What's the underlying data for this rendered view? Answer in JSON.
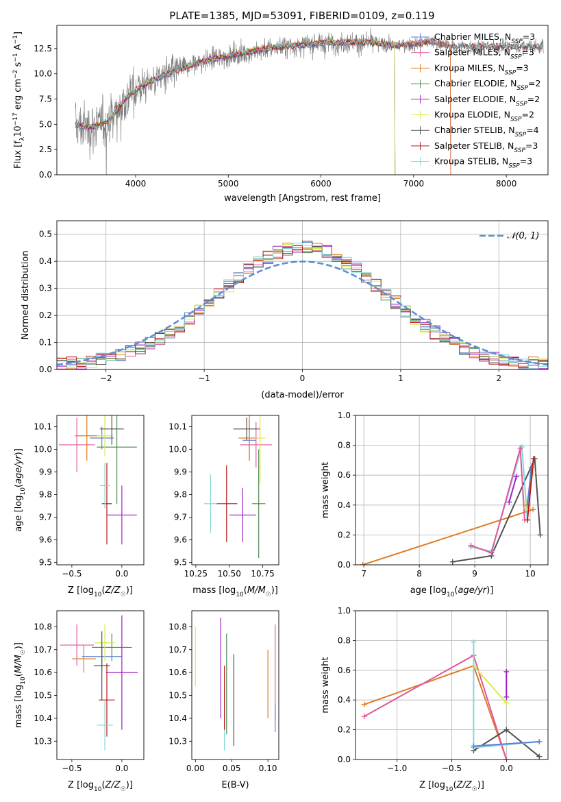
{
  "figure_title": "PLATE=1385, MJD=53091, FIBERID=0109, z=0.119",
  "colors": {
    "Chabrier MILES": "#5b7fd6",
    "Salpeter MILES": "#e0569e",
    "Kroupa MILES": "#e07b22",
    "Chabrier ELODIE": "#4f8a52",
    "Salpeter ELODIE": "#a020c8",
    "Kroupa ELODIE": "#d8ea4a",
    "Chabrier STELIB": "#505050",
    "Salpeter STELIB": "#b81818",
    "Kroupa STELIB": "#7fd8d8",
    "data": "#808080",
    "normal": "#5b8fd6"
  },
  "chart_data": [
    {
      "id": "spectrum",
      "type": "line",
      "title": "PLATE=1385, MJD=53091, FIBERID=0109, z=0.119",
      "xlabel": "wavelength [Angstrom, rest frame]",
      "ylabel": "Flux [fλ10⁻¹⁷ erg cm⁻² s⁻¹ A⁻¹]",
      "xlim": [
        3150,
        8450
      ],
      "ylim": [
        0,
        14.8
      ],
      "xticks": [
        4000,
        5000,
        6000,
        7000,
        8000
      ],
      "yticks": [
        0.0,
        2.5,
        5.0,
        7.5,
        10.0,
        12.5
      ],
      "grid": false,
      "legend_position": "right",
      "legend": [
        {
          "name": "Chabrier MILES",
          "label": "Chabrier MILES, N",
          "sub": "SSP",
          "eq": "=3"
        },
        {
          "name": "Salpeter MILES",
          "label": "Salpeter MILES, N",
          "sub": "SSP",
          "eq": "=3"
        },
        {
          "name": "Kroupa MILES",
          "label": "Kroupa MILES, N",
          "sub": "SSP",
          "eq": "=3"
        },
        {
          "name": "Chabrier ELODIE",
          "label": "Chabrier ELODIE, N",
          "sub": "SSP",
          "eq": "=2"
        },
        {
          "name": "Salpeter ELODIE",
          "label": "Salpeter ELODIE, N",
          "sub": "SSP",
          "eq": "=2"
        },
        {
          "name": "Kroupa ELODIE",
          "label": "Kroupa ELODIE, N",
          "sub": "SSP",
          "eq": "=2"
        },
        {
          "name": "Chabrier STELIB",
          "label": "Chabrier STELIB, N",
          "sub": "SSP",
          "eq": "=4"
        },
        {
          "name": "Salpeter STELIB",
          "label": "Salpeter STELIB, N",
          "sub": "SSP",
          "eq": "=3"
        },
        {
          "name": "Kroupa STELIB",
          "label": "Kroupa STELIB, N",
          "sub": "SSP",
          "eq": "=3"
        }
      ],
      "data_continuum": [
        [
          3350,
          4.9
        ],
        [
          3500,
          4.6
        ],
        [
          3600,
          4.9
        ],
        [
          3700,
          5.3
        ],
        [
          3800,
          6.4
        ],
        [
          3900,
          7.6
        ],
        [
          4000,
          8.4
        ],
        [
          4200,
          9.4
        ],
        [
          4500,
          10.5
        ],
        [
          4800,
          11.4
        ],
        [
          5000,
          11.7
        ],
        [
          5200,
          12.1
        ],
        [
          5500,
          12.6
        ],
        [
          5800,
          12.8
        ],
        [
          6000,
          13.0
        ],
        [
          6300,
          13.1
        ],
        [
          6600,
          13.0
        ],
        [
          6800,
          12.8
        ],
        [
          7000,
          12.9
        ],
        [
          7200,
          13.2
        ],
        [
          7400,
          12.7
        ]
      ],
      "model_ends": {
        "Chabrier MILES": 7400,
        "Salpeter MILES": 7400,
        "Kroupa MILES": 7400,
        "Chabrier ELODIE": 6800,
        "Salpeter ELODIE": 6800,
        "Kroupa ELODIE": 6800,
        "Chabrier STELIB": 8400,
        "Salpeter STELIB": 8400,
        "Kroupa STELIB": 8400
      }
    },
    {
      "id": "residuals",
      "type": "area",
      "xlabel": "(data-model)/error",
      "ylabel": "Normed distribution",
      "xlim": [
        -2.5,
        2.5
      ],
      "ylim": [
        0,
        0.55
      ],
      "xticks": [
        -2,
        -1,
        0,
        1,
        2
      ],
      "xtick_labels": [
        "−2",
        "−1",
        "0",
        "1",
        "2"
      ],
      "yticks": [
        0.0,
        0.1,
        0.2,
        0.3,
        0.4,
        0.5
      ],
      "grid": true,
      "legend_position": "top-right",
      "legend": [
        {
          "name": "normal",
          "label": "𝒩(0, 1)"
        }
      ],
      "bin_edges_range": [
        -2.5,
        2.5
      ],
      "bin_width": 0.1
    },
    {
      "id": "age_vs_Z",
      "type": "scatter",
      "xlabel": "Z [log10(Z/Z☉)]",
      "ylabel": "age  [log10(age/yr)]",
      "xlim": [
        -0.65,
        0.22
      ],
      "ylim": [
        9.49,
        10.15
      ],
      "xticks": [
        -0.5,
        0.0
      ],
      "xtick_labels": [
        "−0.5",
        "0.0"
      ],
      "yticks": [
        9.5,
        9.6,
        9.7,
        9.8,
        9.9,
        10.0,
        10.1
      ],
      "points": [
        {
          "name": "Chabrier MILES",
          "x": -0.2,
          "xerr": 0.12,
          "y": 10.05,
          "yerr": 0.05
        },
        {
          "name": "Salpeter MILES",
          "x": -0.45,
          "xerr": 0.18,
          "y": 10.02,
          "yerr": 0.12
        },
        {
          "name": "Kroupa MILES",
          "x": -0.35,
          "xerr": 0.12,
          "y": 10.06,
          "yerr": 0.11
        },
        {
          "name": "Chabrier ELODIE",
          "x": -0.05,
          "xerr": 0.2,
          "y": 10.01,
          "yerr": 0.25
        },
        {
          "name": "Salpeter ELODIE",
          "x": 0.0,
          "xerr": 0.15,
          "y": 9.71,
          "yerr": 0.13
        },
        {
          "name": "Kroupa ELODIE",
          "x": -0.17,
          "xerr": 0.08,
          "y": 10.06,
          "yerr": 0.09
        },
        {
          "name": "Chabrier STELIB",
          "x": -0.1,
          "xerr": 0.12,
          "y": 10.09,
          "yerr": 0.07
        },
        {
          "name": "Salpeter STELIB",
          "x": -0.15,
          "xerr": 0.05,
          "y": 9.76,
          "yerr": 0.18
        },
        {
          "name": "Kroupa STELIB",
          "x": -0.17,
          "xerr": 0.05,
          "y": 9.84,
          "yerr": 0.1
        }
      ]
    },
    {
      "id": "age_vs_mass",
      "type": "scatter",
      "xlabel": "mass [log10(M/M☉)]",
      "xlim": [
        10.22,
        10.87
      ],
      "ylim": [
        9.49,
        10.15
      ],
      "xticks": [
        10.25,
        10.5,
        10.75
      ],
      "yticks": [
        9.5,
        9.6,
        9.7,
        9.8,
        9.9,
        10.0,
        10.1
      ],
      "points": [
        {
          "name": "Chabrier MILES",
          "x": 10.65,
          "xerr": 0.05,
          "y": 10.04,
          "yerr": 0.09
        },
        {
          "name": "Salpeter MILES",
          "x": 10.7,
          "xerr": 0.12,
          "y": 10.02,
          "yerr": 0.1
        },
        {
          "name": "Kroupa MILES",
          "x": 10.65,
          "xerr": 0.08,
          "y": 10.05,
          "yerr": 0.1
        },
        {
          "name": "Chabrier ELODIE",
          "x": 10.72,
          "xerr": 0.05,
          "y": 9.76,
          "yerr": 0.24
        },
        {
          "name": "Salpeter ELODIE",
          "x": 10.6,
          "xerr": 0.1,
          "y": 9.71,
          "yerr": 0.12
        },
        {
          "name": "Kroupa ELODIE",
          "x": 10.73,
          "xerr": 0.04,
          "y": 10.05,
          "yerr": 0.2
        },
        {
          "name": "Chabrier STELIB",
          "x": 10.63,
          "xerr": 0.1,
          "y": 10.09,
          "yerr": 0.05
        },
        {
          "name": "Salpeter STELIB",
          "x": 10.48,
          "xerr": 0.08,
          "y": 9.76,
          "yerr": 0.17
        },
        {
          "name": "Kroupa STELIB",
          "x": 10.36,
          "xerr": 0.05,
          "y": 9.76,
          "yerr": 0.13
        }
      ]
    },
    {
      "id": "mass_weight_vs_age",
      "type": "line",
      "xlabel": "age  [log10(age/yr)]",
      "ylabel": "mass weight",
      "xlim": [
        6.85,
        10.32
      ],
      "ylim": [
        0,
        1
      ],
      "xticks": [
        7,
        8,
        9,
        10
      ],
      "yticks": [
        0.0,
        0.2,
        0.4,
        0.6,
        0.8,
        1.0
      ],
      "grid": true,
      "series": [
        {
          "name": "Kroupa MILES",
          "points": [
            [
              6.98,
              0.0
            ],
            [
              10.05,
              0.37
            ]
          ]
        },
        {
          "name": "Chabrier STELIB",
          "points": [
            [
              8.6,
              0.02
            ],
            [
              9.3,
              0.06
            ],
            [
              10.08,
              0.71
            ],
            [
              10.18,
              0.2
            ]
          ]
        },
        {
          "name": "Kroupa STELIB",
          "points": [
            [
              8.93,
              0.12
            ],
            [
              9.3,
              0.09
            ],
            [
              9.85,
              0.79
            ],
            [
              9.95,
              0.3
            ]
          ]
        },
        {
          "name": "Salpeter MILES",
          "points": [
            [
              8.93,
              0.13
            ],
            [
              9.3,
              0.08
            ],
            [
              9.82,
              0.78
            ],
            [
              9.9,
              0.3
            ]
          ]
        },
        {
          "name": "Salpeter ELODIE",
          "points": [
            [
              9.62,
              0.42
            ],
            [
              9.75,
              0.59
            ]
          ]
        },
        {
          "name": "Kroupa ELODIE",
          "points": [
            [
              9.92,
              0.38
            ],
            [
              10.05,
              0.62
            ]
          ]
        },
        {
          "name": "Chabrier MILES",
          "points": [
            [
              9.95,
              0.4
            ],
            [
              10.02,
              0.65
            ]
          ]
        },
        {
          "name": "Salpeter STELIB",
          "points": [
            [
              10.06,
              0.71
            ],
            [
              9.95,
              0.3
            ]
          ]
        }
      ]
    },
    {
      "id": "mass_vs_Z",
      "type": "scatter",
      "xlabel": "Z [log10(Z/Z☉)]",
      "ylabel": "mass [log10(M/M☉)]",
      "xlim": [
        -0.65,
        0.22
      ],
      "ylim": [
        10.22,
        10.87
      ],
      "xticks": [
        -0.5,
        0.0
      ],
      "xtick_labels": [
        "−0.5",
        "0.0"
      ],
      "yticks": [
        10.3,
        10.4,
        10.5,
        10.6,
        10.7,
        10.8
      ],
      "points": [
        {
          "name": "Chabrier MILES",
          "x": -0.2,
          "xerr": 0.2,
          "y": 10.67,
          "yerr": 0.06
        },
        {
          "name": "Salpeter MILES",
          "x": -0.45,
          "xerr": 0.17,
          "y": 10.72,
          "yerr": 0.09
        },
        {
          "name": "Kroupa MILES",
          "x": -0.38,
          "xerr": 0.12,
          "y": 10.66,
          "yerr": 0.06
        },
        {
          "name": "Chabrier ELODIE",
          "x": -0.1,
          "xerr": 0.2,
          "y": 10.71,
          "yerr": 0.06
        },
        {
          "name": "Salpeter ELODIE",
          "x": 0.0,
          "xerr": 0.16,
          "y": 10.6,
          "yerr": 0.25
        },
        {
          "name": "Kroupa ELODIE",
          "x": -0.17,
          "xerr": 0.1,
          "y": 10.73,
          "yerr": 0.08
        },
        {
          "name": "Chabrier STELIB",
          "x": -0.2,
          "xerr": 0.08,
          "y": 10.63,
          "yerr": 0.15
        },
        {
          "name": "Salpeter STELIB",
          "x": -0.15,
          "xerr": 0.08,
          "y": 10.48,
          "yerr": 0.16
        },
        {
          "name": "Kroupa STELIB",
          "x": -0.17,
          "xerr": 0.08,
          "y": 10.37,
          "yerr": 0.11
        }
      ]
    },
    {
      "id": "mass_vs_ebv",
      "type": "scatter",
      "xlabel": "E(B-V)",
      "xlim": [
        -0.005,
        0.115
      ],
      "ylim": [
        10.22,
        10.87
      ],
      "xticks": [
        0.0,
        0.05,
        0.1
      ],
      "xtick_labels": [
        "0.00",
        "0.05",
        "0.10"
      ],
      "yticks": [
        10.3,
        10.4,
        10.5,
        10.6,
        10.7,
        10.8
      ],
      "points": [
        {
          "name": "Kroupa ELODIE",
          "x": 0.0,
          "xerr": 0,
          "y": 10.67,
          "yerr": 0.13
        },
        {
          "name": "Salpeter ELODIE",
          "x": 0.035,
          "xerr": 0,
          "y": 10.62,
          "yerr": 0.22
        },
        {
          "name": "Kroupa STELIB",
          "x": 0.04,
          "xerr": 0,
          "y": 10.4,
          "yerr": 0.14
        },
        {
          "name": "Salpeter STELIB",
          "x": 0.04,
          "xerr": 0,
          "y": 10.49,
          "yerr": 0.14
        },
        {
          "name": "Chabrier ELODIE",
          "x": 0.043,
          "xerr": 0,
          "y": 10.55,
          "yerr": 0.22
        },
        {
          "name": "Chabrier STELIB",
          "x": 0.053,
          "xerr": 0,
          "y": 10.48,
          "yerr": 0.2
        },
        {
          "name": "Kroupa MILES",
          "x": 0.1,
          "xerr": 0,
          "y": 10.55,
          "yerr": 0.15
        },
        {
          "name": "Salpeter MILES",
          "x": 0.11,
          "xerr": 0,
          "y": 10.6,
          "yerr": 0.21
        },
        {
          "name": "Chabrier MILES",
          "x": 0.11,
          "xerr": 0,
          "y": 10.4,
          "yerr": 0.06
        }
      ]
    },
    {
      "id": "mass_weight_vs_Z",
      "type": "line",
      "xlabel": "Z [log10(Z/Z☉)]",
      "ylabel": "mass weight",
      "xlim": [
        -1.38,
        0.38
      ],
      "ylim": [
        0,
        1
      ],
      "xticks": [
        -1.0,
        -0.5,
        0.0
      ],
      "xtick_labels": [
        "−1.0",
        "−0.5",
        "0.0"
      ],
      "yticks": [
        0.0,
        0.2,
        0.4,
        0.6,
        0.8,
        1.0
      ],
      "grid": true,
      "series": [
        {
          "name": "Kroupa MILES",
          "points": [
            [
              -1.3,
              0.37
            ],
            [
              -0.3,
              0.63
            ],
            [
              0.0,
              0.0
            ]
          ]
        },
        {
          "name": "Salpeter MILES",
          "points": [
            [
              -1.3,
              0.29
            ],
            [
              -0.3,
              0.7
            ],
            [
              0.0,
              0.0
            ]
          ]
        },
        {
          "name": "Kroupa ELODIE",
          "points": [
            [
              -0.3,
              0.63
            ],
            [
              0.0,
              0.38
            ]
          ]
        },
        {
          "name": "Salpeter ELODIE",
          "points": [
            [
              0.0,
              0.59
            ],
            [
              0.0,
              0.42
            ]
          ]
        },
        {
          "name": "Chabrier STELIB",
          "points": [
            [
              -0.3,
              0.06
            ],
            [
              0.0,
              0.2
            ],
            [
              0.3,
              0.02
            ]
          ]
        },
        {
          "name": "Kroupa STELIB",
          "points": [
            [
              -0.3,
              0.79
            ],
            [
              -0.3,
              0.08
            ],
            [
              0.3,
              0.12
            ]
          ]
        },
        {
          "name": "Chabrier MILES",
          "points": [
            [
              -0.3,
              0.09
            ],
            [
              0.3,
              0.12
            ]
          ]
        }
      ]
    }
  ]
}
